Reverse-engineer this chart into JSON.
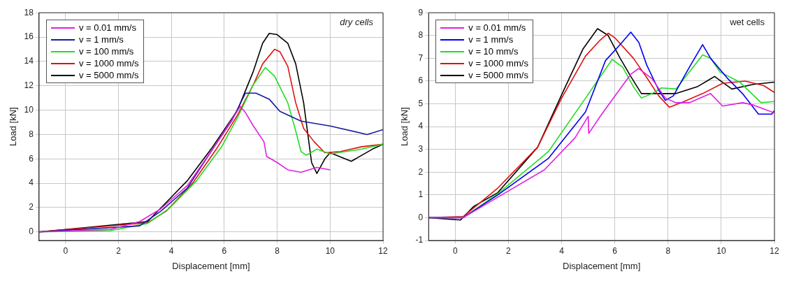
{
  "chart_data": [
    {
      "type": "line",
      "xlabel": "Displacement [mm]",
      "ylabel": "Load [kN]",
      "xlim": [
        -1,
        12
      ],
      "xticks": [
        0,
        2,
        4,
        6,
        8,
        10,
        12
      ],
      "ylim": [
        -0.7,
        18
      ],
      "yticks": [
        0,
        2,
        4,
        6,
        8,
        10,
        12,
        14,
        16,
        18
      ],
      "grid": true,
      "legend": "top left",
      "marker": "none",
      "line_style": "solid",
      "annotations": [
        "dry cells"
      ],
      "series": [
        {
          "name": "v = 0.01 mm/s",
          "color": "#e020e0",
          "x": [
            -1,
            1.7,
            2.8,
            3.6,
            4.6,
            5.5,
            6.4,
            6.6,
            6.8,
            7.1,
            7.5,
            7.6,
            8,
            8.4,
            8.9,
            9.5,
            10
          ],
          "values": [
            0,
            0.2,
            0.85,
            1.9,
            3.8,
            6.6,
            9.6,
            10.3,
            9.8,
            8.7,
            7.4,
            6.2,
            5.7,
            5.1,
            4.9,
            5.3,
            5.1
          ]
        },
        {
          "name": "v = 1 mm/s",
          "color": "#1a1aa0",
          "x": [
            -1,
            2.8,
            3.6,
            4.6,
            5.5,
            6.3,
            6.8,
            7.2,
            7.7,
            8.1,
            8.9,
            10,
            11.4,
            12
          ],
          "values": [
            0,
            0.5,
            1.7,
            3.6,
            6.6,
            9.2,
            11.4,
            11.4,
            10.9,
            9.9,
            9.1,
            8.7,
            8,
            8.4
          ]
        },
        {
          "name": "v = 100 mm/s",
          "color": "#22dd22",
          "x": [
            -1,
            1.7,
            3.1,
            3.9,
            4.95,
            5.9,
            6.5,
            7.1,
            7.55,
            7.9,
            8.4,
            8.7,
            8.9,
            9.1,
            9.5,
            10,
            11.2,
            12
          ],
          "values": [
            0,
            0.1,
            0.7,
            1.9,
            4.2,
            7,
            9.4,
            12.1,
            13.5,
            12.8,
            10.6,
            8.3,
            6.6,
            6.3,
            6.8,
            6.4,
            6.8,
            7.2
          ]
        },
        {
          "name": "v = 1000 mm/s",
          "color": "#e01010",
          "x": [
            -1,
            3.1,
            3.8,
            4.8,
            5.7,
            6.5,
            7.1,
            7.45,
            7.9,
            8.1,
            8.4,
            8.7,
            9,
            9.4,
            9.8,
            10.4,
            11.2,
            12
          ],
          "values": [
            0,
            0.75,
            1.7,
            4,
            6.8,
            9.6,
            12.1,
            13.8,
            15,
            14.8,
            13.6,
            10.6,
            8.5,
            7.4,
            6.5,
            6.6,
            7,
            7.2
          ]
        },
        {
          "name": "v = 5000 mm/s",
          "color": "#000000",
          "x": [
            -1,
            0.5,
            3.1,
            4.6,
            5.5,
            6.5,
            7.1,
            7.45,
            7.7,
            8,
            8.4,
            8.7,
            9,
            9.3,
            9.5,
            9.8,
            10,
            10.8,
            11.6,
            12
          ],
          "values": [
            0,
            0.3,
            0.85,
            4.2,
            6.8,
            10,
            13.2,
            15.5,
            16.3,
            16.2,
            15.5,
            13.8,
            10.6,
            5.7,
            4.8,
            6,
            6.5,
            5.8,
            6.8,
            7.2
          ]
        }
      ]
    },
    {
      "type": "line",
      "xlabel": "Displacement [mm]",
      "ylabel": "Load [kN]",
      "xlim": [
        -1,
        12
      ],
      "xticks": [
        0,
        2,
        4,
        6,
        8,
        10,
        12
      ],
      "ylim": [
        -1,
        9
      ],
      "yticks": [
        -1,
        0,
        1,
        2,
        3,
        4,
        5,
        6,
        7,
        8,
        9
      ],
      "grid": true,
      "legend": "top left",
      "marker": "none",
      "line_style": "solid",
      "annotations": [
        "wet cells"
      ],
      "series": [
        {
          "name": "v = 0.01 mm/s",
          "color": "#e020e0",
          "x": [
            -1,
            0.3,
            1.6,
            3.35,
            4.5,
            5,
            5.02,
            5.45,
            6.1,
            6.6,
            6.9,
            7.4,
            7.9,
            8.3,
            8.8,
            9.6,
            10.05,
            10.8,
            11.2,
            12
          ],
          "values": [
            0,
            0,
            0.9,
            2.1,
            3.5,
            4.45,
            3.7,
            4.45,
            5.5,
            6.3,
            6.55,
            6.1,
            5.25,
            5.05,
            5.05,
            5.45,
            4.9,
            5.05,
            4.95,
            4.6
          ]
        },
        {
          "name": "v = 1 mm/s",
          "color": "#0000ee",
          "x": [
            -1,
            0.3,
            1.6,
            3.5,
            4.9,
            5.65,
            6.2,
            6.6,
            6.9,
            7.2,
            7.65,
            7.9,
            8.2,
            8.8,
            9.3,
            9.6,
            10.25,
            10.8,
            11.4,
            11.9,
            12
          ],
          "values": [
            0,
            0,
            1,
            2.6,
            4.65,
            6.9,
            7.6,
            8.15,
            7.7,
            6.7,
            5.6,
            5.15,
            5.35,
            6.6,
            7.6,
            7,
            6.1,
            5.45,
            4.55,
            4.55,
            4.7
          ]
        },
        {
          "name": "v = 10 mm/s",
          "color": "#22dd22",
          "x": [
            -1,
            0.3,
            1.6,
            3.5,
            4.9,
            5.9,
            6.3,
            6.7,
            7,
            7.4,
            7.75,
            8.3,
            8.8,
            9.3,
            9.6,
            9.95,
            10.7,
            11.5,
            12
          ],
          "values": [
            0,
            0,
            1.05,
            2.9,
            5.25,
            6.95,
            6.6,
            5.75,
            5.25,
            5.45,
            5.7,
            5.65,
            6.4,
            7.15,
            7,
            6.4,
            5.95,
            5.05,
            5.1
          ]
        },
        {
          "name": "v = 1000 mm/s",
          "color": "#e01010",
          "x": [
            -1,
            0.3,
            1.6,
            3.1,
            4,
            4.9,
            5.45,
            5.75,
            6,
            6.7,
            7.2,
            7.65,
            8.05,
            8.6,
            9.3,
            10.05,
            10.9,
            11.6,
            12
          ],
          "values": [
            0,
            0.05,
            1.3,
            3.1,
            5.25,
            7.1,
            7.8,
            8.1,
            7.9,
            7,
            6.15,
            5.35,
            4.85,
            5.1,
            5.45,
            5.9,
            6,
            5.8,
            5.5
          ]
        },
        {
          "name": "v = 5000 mm/s",
          "color": "#000000",
          "x": [
            -1,
            0.2,
            0.7,
            1.6,
            3.1,
            4.1,
            4.8,
            5.35,
            5.75,
            6.2,
            6.6,
            7,
            7.4,
            8.3,
            9.1,
            9.75,
            10.4,
            11.2,
            12
          ],
          "values": [
            0,
            -0.1,
            0.5,
            1.1,
            3.1,
            5.65,
            7.4,
            8.3,
            8,
            7,
            6.2,
            5.45,
            5.45,
            5.45,
            5.75,
            6.2,
            5.65,
            5.85,
            5.95
          ]
        }
      ]
    }
  ]
}
